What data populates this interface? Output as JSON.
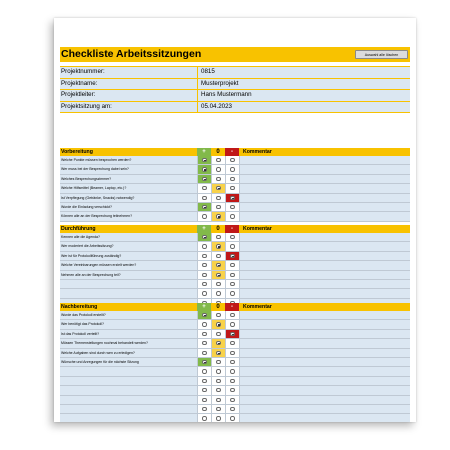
{
  "title": "Checkliste Arbeitssitzungen",
  "reset_button": "Auswahl alle löschen",
  "info": [
    {
      "label": "Projektnummer:",
      "value": "0815"
    },
    {
      "label": "Projektname:",
      "value": "Musterprojekt"
    },
    {
      "label": "Projektleiter:",
      "value": "Hans Mustermann"
    },
    {
      "label": "Projektsitzung am:",
      "value": "05.04.2023"
    }
  ],
  "columns": {
    "plus": "+",
    "zero": "0",
    "minus": "-",
    "comment": "Kommentar"
  },
  "colors": {
    "accent": "#f8c200",
    "plus": "#82b94a",
    "zero": "#f8d24a",
    "minus": "#c01818",
    "row": "#dbe7f2"
  },
  "sections": [
    {
      "name": "Vorbereitung",
      "rows": [
        {
          "text": "Welche Punkte müssen besprochen werden?",
          "sel": "plus"
        },
        {
          "text": "Wer muss bei der Besprechung dabei sein?",
          "sel": "plus"
        },
        {
          "text": "Welches Besprechungszimmer?",
          "sel": "plus"
        },
        {
          "text": "Welche Hilfsmittel (Beamer, Laptop, etc.)?",
          "sel": "zero"
        },
        {
          "text": "Ist Verpflegung (Getränke, Snacks) notwendig?",
          "sel": "minus"
        },
        {
          "text": "Wurde die Einladung verschickt?",
          "sel": "plus"
        },
        {
          "text": "Können alle an der Besprechung teilnehmen?",
          "sel": "zero"
        }
      ]
    },
    {
      "name": "Durchführung",
      "rows": [
        {
          "text": "Kennen alle die Agenda?",
          "sel": "plus"
        },
        {
          "text": "Wer moderiert die Arbeitssitzung?",
          "sel": "zero"
        },
        {
          "text": "Wer ist für Protokollführung zuständig?",
          "sel": "minus"
        },
        {
          "text": "Welche Vereinbarungen müssen erzielt werden?",
          "sel": "zero"
        },
        {
          "text": "Nehmen alle an der Besprechung teil?",
          "sel": "zero"
        },
        {
          "text": "",
          "sel": ""
        },
        {
          "text": "",
          "sel": ""
        },
        {
          "text": "",
          "sel": ""
        }
      ]
    },
    {
      "name": "Nachbereitung",
      "rows": [
        {
          "text": "Wurde das Protokoll erstellt?",
          "sel": "plus"
        },
        {
          "text": "Wer benötigt das Protokoll?",
          "sel": "zero"
        },
        {
          "text": "Ist das Protokoll verteilt?",
          "sel": "minus"
        },
        {
          "text": "Müssen Themenstellungen nochmal behandelt werden?",
          "sel": "zero"
        },
        {
          "text": "Welche Aufgaben sind durch wen zu erledigen?",
          "sel": "zero"
        },
        {
          "text": "Wünsche und Anregungen für die nächste Sitzung",
          "sel": "plus"
        },
        {
          "text": "",
          "sel": ""
        },
        {
          "text": "",
          "sel": ""
        },
        {
          "text": "",
          "sel": ""
        },
        {
          "text": "",
          "sel": ""
        },
        {
          "text": "",
          "sel": ""
        },
        {
          "text": "",
          "sel": ""
        },
        {
          "text": "",
          "sel": ""
        }
      ]
    }
  ]
}
